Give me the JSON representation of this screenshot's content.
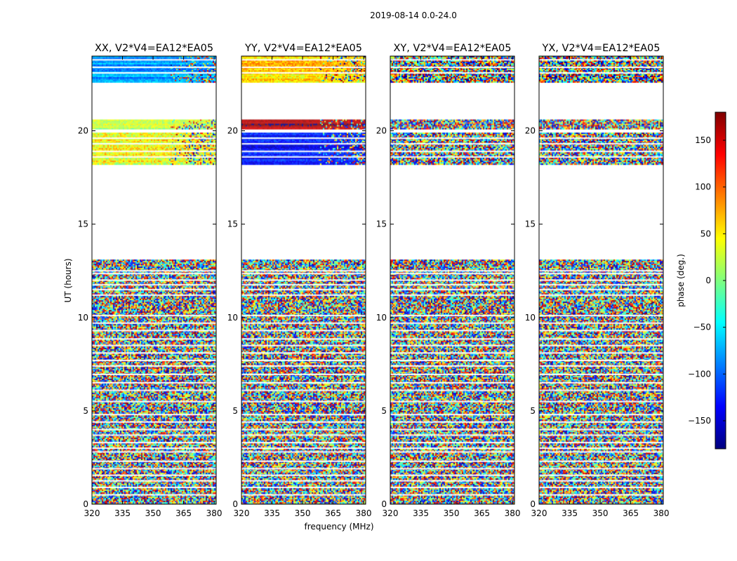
{
  "figure_title": "2019-08-14 0.0-24.0",
  "chart_data": {
    "type": "heatmap",
    "title": "2019-08-14 0.0-24.0",
    "xlabel": "frequency (MHz)",
    "ylabel": "UT (hours)",
    "xlim": [
      320,
      381
    ],
    "ylim": [
      0,
      24
    ],
    "xticks": [
      320,
      335,
      350,
      365,
      380
    ],
    "yticks": [
      0,
      5,
      10,
      15,
      20
    ],
    "colorbar": {
      "label": "phase (deg.)",
      "range": [
        -180,
        180
      ],
      "ticks": [
        150,
        100,
        50,
        0,
        -50,
        -100,
        -150
      ],
      "tick_labels": [
        "150",
        "100",
        "50",
        "0",
        "−50",
        "−100",
        "−150"
      ],
      "colormap": "jet",
      "colors": [
        "#00007f",
        "#0000ff",
        "#007fff",
        "#00ffff",
        "#7fff7f",
        "#ffff00",
        "#ff7f00",
        "#ff0000",
        "#7f0000"
      ]
    },
    "panels": [
      {
        "title": "XX, V2*V4=EA12*EA05",
        "bands": [
          {
            "t0": 22.6,
            "t1": 24.0,
            "mode": "coherent",
            "phase": -80,
            "spread": 30
          },
          {
            "t0": 20.1,
            "t1": 20.6,
            "mode": "coherent",
            "phase": 20,
            "spread": 40
          },
          {
            "t0": 18.2,
            "t1": 19.9,
            "mode": "coherent",
            "phase": 40,
            "spread": 70
          },
          {
            "t0": 0.0,
            "t1": 13.1,
            "mode": "noise"
          }
        ]
      },
      {
        "title": "YY, V2*V4=EA12*EA05",
        "bands": [
          {
            "t0": 22.6,
            "t1": 24.0,
            "mode": "coherent",
            "phase": 60,
            "spread": 50
          },
          {
            "t0": 20.1,
            "t1": 20.6,
            "mode": "coherent",
            "phase": 165,
            "spread": 15
          },
          {
            "t0": 18.2,
            "t1": 19.9,
            "mode": "coherent",
            "phase": -130,
            "spread": 35
          },
          {
            "t0": 0.0,
            "t1": 13.1,
            "mode": "noise"
          }
        ]
      },
      {
        "title": "XY, V2*V4=EA12*EA05",
        "bands": [
          {
            "t0": 22.6,
            "t1": 24.0,
            "mode": "noise"
          },
          {
            "t0": 20.1,
            "t1": 20.6,
            "mode": "noise"
          },
          {
            "t0": 18.2,
            "t1": 19.9,
            "mode": "noise"
          },
          {
            "t0": 0.0,
            "t1": 13.1,
            "mode": "noise"
          }
        ]
      },
      {
        "title": "YX, V2*V4=EA12*EA05",
        "bands": [
          {
            "t0": 22.6,
            "t1": 24.0,
            "mode": "noise"
          },
          {
            "t0": 20.1,
            "t1": 20.6,
            "mode": "noise"
          },
          {
            "t0": 18.2,
            "t1": 19.9,
            "mode": "noise"
          },
          {
            "t0": 0.0,
            "t1": 13.1,
            "mode": "noise"
          }
        ]
      }
    ],
    "gaps_hours": [
      0.5,
      0.9,
      1.25,
      1.55,
      1.9,
      2.3,
      2.8,
      3.0,
      3.3,
      3.7,
      4.0,
      4.4,
      4.8,
      5.5,
      6.1,
      6.5,
      6.95,
      7.4,
      7.7,
      8.1,
      8.5,
      8.85,
      9.3,
      9.7,
      10.1,
      11.2,
      11.5,
      11.75,
      12.0,
      12.35,
      12.5,
      18.6,
      18.9,
      19.3,
      19.6,
      23.1,
      23.4,
      23.8
    ]
  }
}
